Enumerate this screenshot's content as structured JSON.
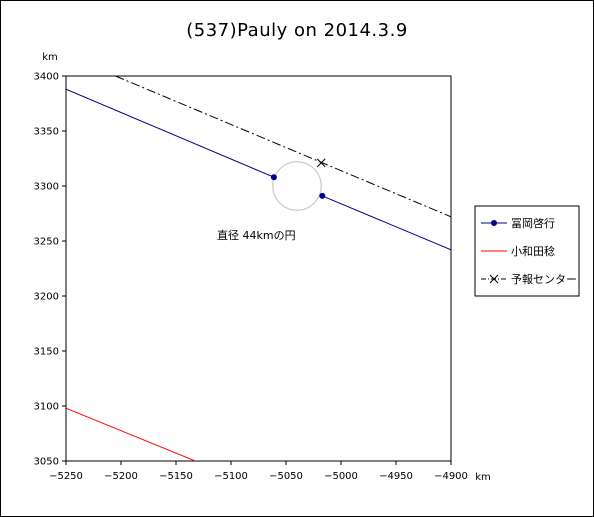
{
  "chart_data": {
    "type": "line",
    "title": "(537)Pauly on 2014.3.9",
    "xunit": "km",
    "yunit": "km",
    "xlim": [
      -5250,
      -4900
    ],
    "ylim": [
      3050,
      3400
    ],
    "xticks": [
      -5250,
      -5200,
      -5150,
      -5100,
      -5050,
      -5000,
      -4950,
      -4900
    ],
    "yticks": [
      3050,
      3100,
      3150,
      3200,
      3250,
      3300,
      3350,
      3400
    ],
    "grid": false,
    "legend_position": "right",
    "series": [
      {
        "name": "冨岡啓行",
        "color": "#00008b",
        "style": "solid",
        "segments": [
          [
            [
              -5250,
              3388
            ],
            [
              -5061,
              3308
            ]
          ],
          [
            [
              -5017,
              3291
            ],
            [
              -4900,
              3242
            ]
          ]
        ],
        "markers": [
          [
            -5061,
            3308
          ],
          [
            -5017,
            3291
          ]
        ]
      },
      {
        "name": "小和田稔",
        "color": "#ff0000",
        "style": "solid",
        "segments": [
          [
            [
              -5250,
              3098
            ],
            [
              -5130,
              3049
            ]
          ]
        ],
        "markers": []
      },
      {
        "name": "予報センター",
        "color": "#000000",
        "style": "dashdot",
        "segments": [
          [
            [
              -5205,
              3400
            ],
            [
              -4900,
              3272
            ]
          ]
        ],
        "markers": [
          [
            -5018,
            3321
          ]
        ]
      }
    ],
    "circle": {
      "center": [
        -5040,
        3300
      ],
      "diameter": 44,
      "color": "#c8c8c8"
    },
    "annotation": {
      "text": "直径 44kmの円",
      "at": [
        -5080,
        3250
      ]
    }
  }
}
